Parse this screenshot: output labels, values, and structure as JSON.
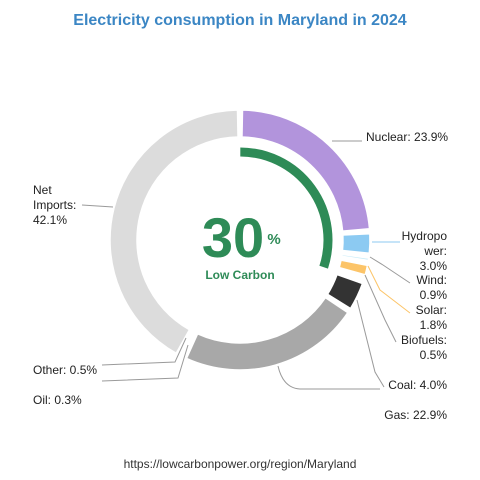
{
  "chart_data": {
    "type": "pie",
    "title": "Electricity consumption in Maryland in 2024",
    "center": {
      "value": "30",
      "unit": "%",
      "caption": "Low Carbon",
      "fraction": 0.3
    },
    "slices": [
      {
        "name": "Nuclear",
        "value": 23.9,
        "color": "#b294dc",
        "label_lines": [
          "Nuclear: 23.9%"
        ]
      },
      {
        "name": "Hydropower",
        "value": 3.0,
        "color": "#8ccaf2",
        "label_lines": [
          "Hydropo",
          "wer:",
          "3.0%"
        ]
      },
      {
        "name": "Wind",
        "value": 0.9,
        "color": "#c7ebf8",
        "label_lines": [
          "Wind:",
          "0.9%"
        ]
      },
      {
        "name": "Solar",
        "value": 1.8,
        "color": "#fcc468",
        "label_lines": [
          "Solar:",
          "1.8%"
        ]
      },
      {
        "name": "Biofuels",
        "value": 0.5,
        "color": "#8a7256",
        "label_lines": [
          "Biofuels:",
          "0.5%"
        ]
      },
      {
        "name": "Coal",
        "value": 4.0,
        "color": "#333333",
        "label_lines": [
          "Coal: 4.0%"
        ]
      },
      {
        "name": "Gas",
        "value": 22.9,
        "color": "#a8a8a8",
        "label_lines": [
          "Gas: 22.9%"
        ]
      },
      {
        "name": "Oil",
        "value": 0.3,
        "color": "#606060",
        "label_lines": [
          "Oil: 0.3%"
        ]
      },
      {
        "name": "Other",
        "value": 0.5,
        "color": "#cfcfcf",
        "label_lines": [
          "Other: 0.5%"
        ]
      },
      {
        "name": "Net Imports",
        "value": 42.1,
        "color": "#dcdcdc",
        "label_lines": [
          "Net",
          "Imports:",
          "42.1%"
        ]
      }
    ],
    "inner_arc_color": "#2e8b57"
  },
  "source": "https://lowcarbonpower.org/region/Maryland"
}
